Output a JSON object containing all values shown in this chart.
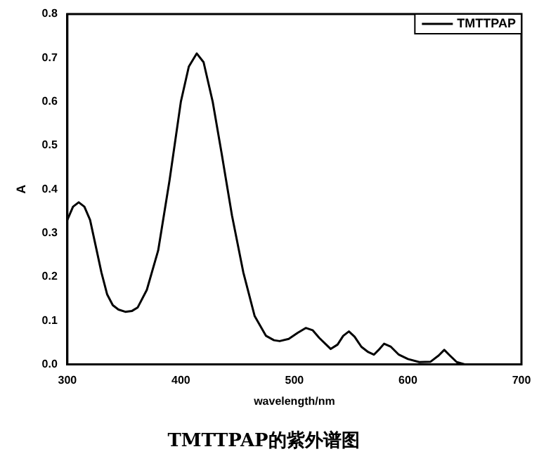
{
  "chart_data": {
    "type": "line",
    "title": "TMTTPAP的紫外谱图",
    "xlabel": "wavelength/nm",
    "ylabel": "A",
    "xlim": [
      300,
      700
    ],
    "xticks": [
      300,
      400,
      500,
      600,
      700
    ],
    "ylim": [
      0,
      0.8
    ],
    "yticks": [
      {
        "value": 0,
        "label": "0.0"
      },
      0.1,
      0.2,
      0.3,
      0.4,
      0.5,
      0.6,
      0.7,
      0.8
    ],
    "grid": false,
    "legend": "top right",
    "marker": "none",
    "line_style": "solid",
    "series": [
      {
        "name": "TMTTPAP",
        "color": "#000000",
        "x": [
          300,
          305,
          310,
          315,
          320,
          325,
          330,
          335,
          340,
          345,
          351,
          357,
          362,
          370,
          380,
          390,
          400,
          407,
          414,
          420,
          428,
          436,
          445,
          455,
          465,
          475,
          482,
          487,
          495,
          503,
          510,
          516,
          522,
          528,
          532,
          538,
          543,
          548,
          553,
          559,
          565,
          570,
          575,
          579,
          585,
          592,
          600,
          610,
          620,
          627,
          632,
          637,
          643,
          650,
          700
        ],
        "values": [
          0.33,
          0.36,
          0.37,
          0.36,
          0.33,
          0.27,
          0.21,
          0.16,
          0.135,
          0.125,
          0.12,
          0.122,
          0.13,
          0.17,
          0.26,
          0.42,
          0.6,
          0.68,
          0.71,
          0.69,
          0.6,
          0.48,
          0.34,
          0.21,
          0.11,
          0.065,
          0.055,
          0.053,
          0.058,
          0.072,
          0.083,
          0.078,
          0.06,
          0.045,
          0.035,
          0.045,
          0.065,
          0.075,
          0.063,
          0.04,
          0.028,
          0.022,
          0.035,
          0.047,
          0.04,
          0.022,
          0.012,
          0.005,
          0.006,
          0.02,
          0.033,
          0.02,
          0.005,
          0.0,
          0.0
        ]
      }
    ]
  }
}
